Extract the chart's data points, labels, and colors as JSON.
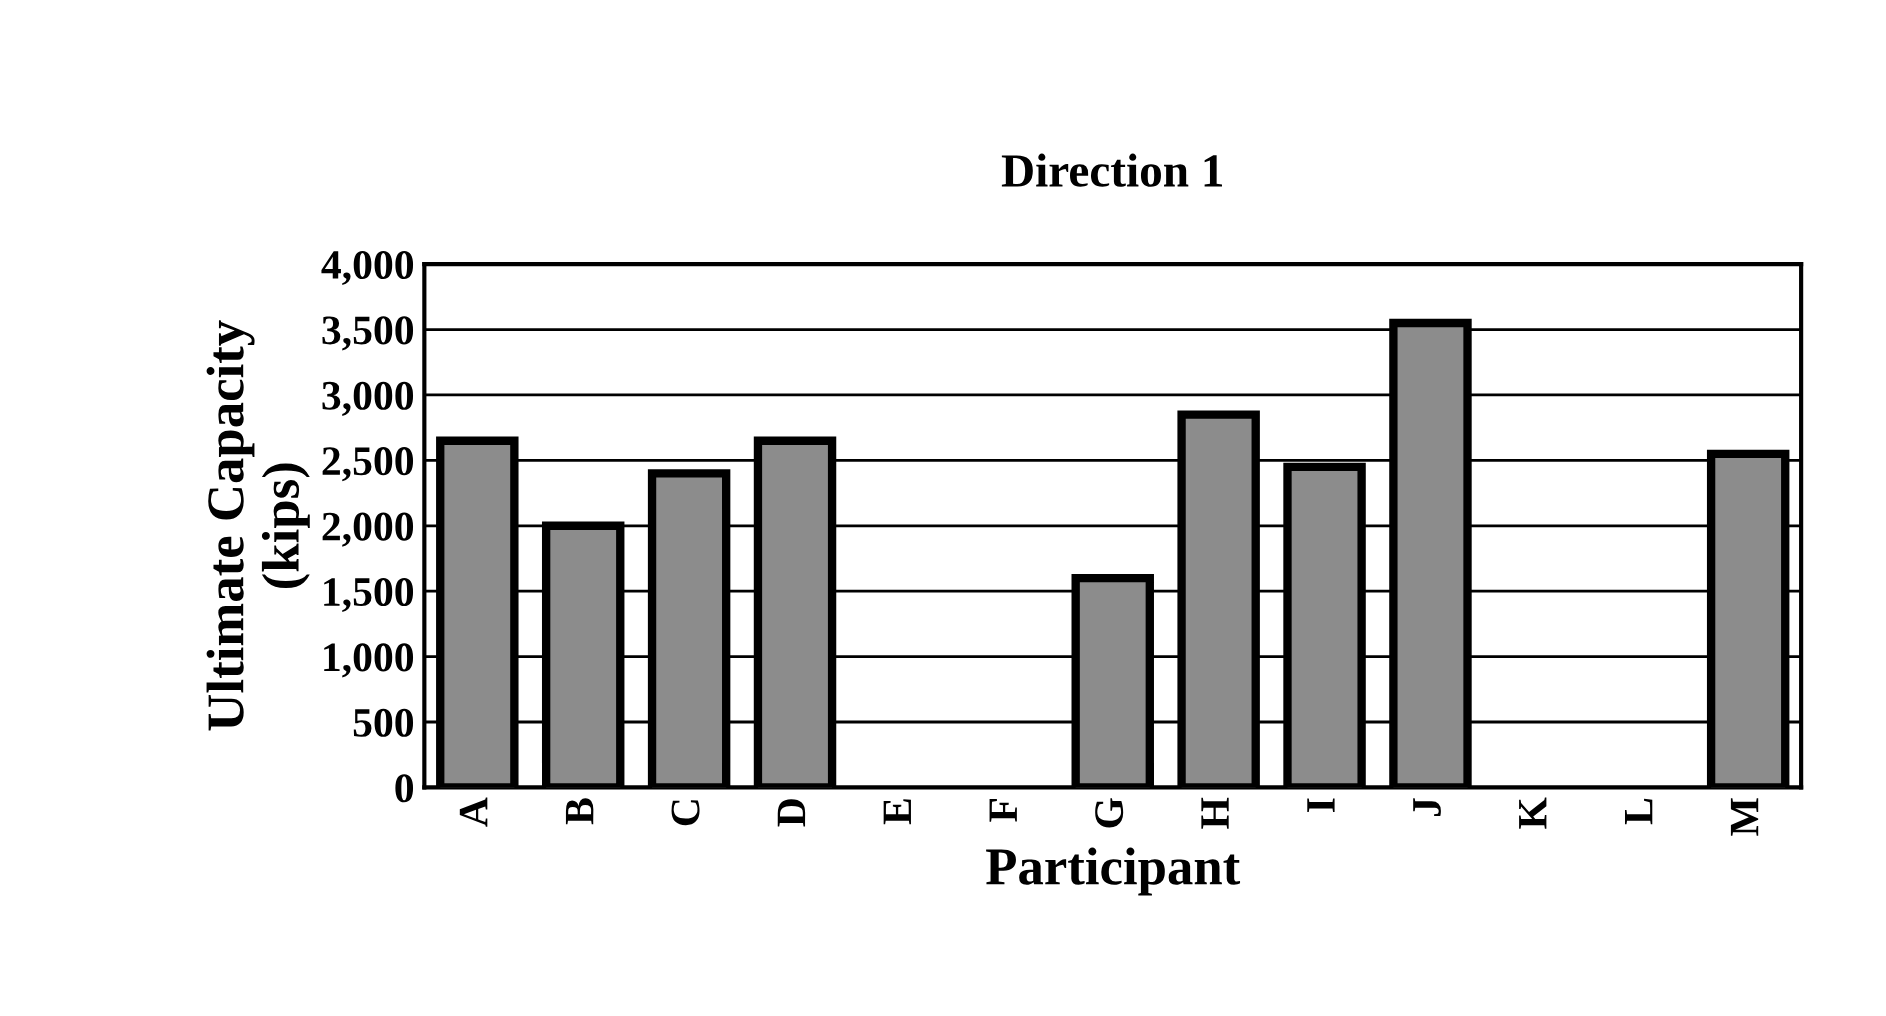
{
  "chart_data": {
    "type": "bar",
    "title": "Direction 1",
    "xlabel": "Participant",
    "ylabel": "Ultimate Capacity\n(kips)",
    "categories": [
      "A",
      "B",
      "C",
      "D",
      "E",
      "F",
      "G",
      "H",
      "I",
      "J",
      "K",
      "L",
      "M"
    ],
    "values": [
      2650,
      2000,
      2400,
      2650,
      null,
      null,
      1600,
      2850,
      2450,
      3550,
      null,
      null,
      2550
    ],
    "color": "#8c8c8c",
    "ylim": [
      0,
      4000
    ],
    "yticks": [
      {
        "value": 0,
        "label": "0"
      },
      {
        "value": 500,
        "label": "500"
      },
      {
        "value": 1000,
        "label": "1,000"
      },
      {
        "value": 1500,
        "label": "1,500"
      },
      {
        "value": 2000,
        "label": "2,000"
      },
      {
        "value": 2500,
        "label": "2,500"
      },
      {
        "value": 3000,
        "label": "3,000"
      },
      {
        "value": 3500,
        "label": "3,500"
      },
      {
        "value": 4000,
        "label": "4,000"
      }
    ],
    "grid": "y"
  }
}
